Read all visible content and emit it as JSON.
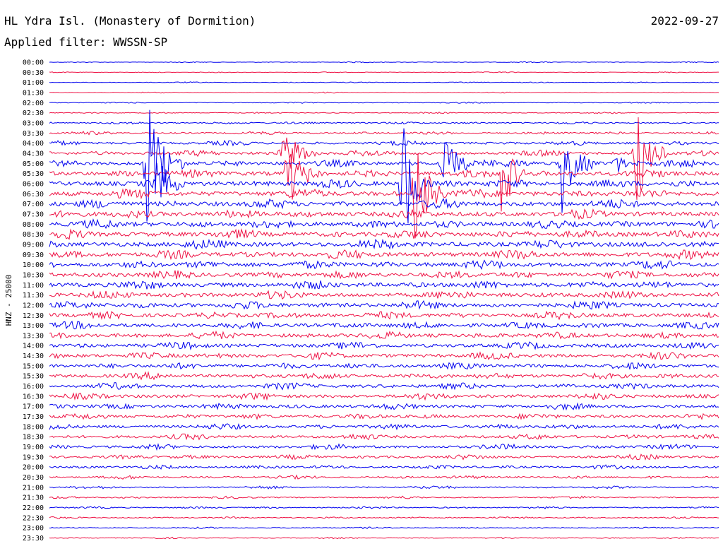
{
  "header": {
    "station": "HL Ydra Isl. (Monastery of Dormition)",
    "filter": "Applied filter: WWSSN-SP",
    "date": "2022-09-27"
  },
  "chart_data": {
    "type": "line",
    "subtype": "helicorder",
    "ylabel": "HNZ - 25000",
    "rows": [
      "00:00",
      "00:30",
      "01:00",
      "01:30",
      "02:00",
      "02:30",
      "03:00",
      "03:30",
      "04:00",
      "04:30",
      "05:00",
      "05:30",
      "06:00",
      "06:30",
      "07:00",
      "07:30",
      "08:00",
      "08:30",
      "09:00",
      "09:30",
      "10:00",
      "10:30",
      "11:00",
      "11:30",
      "12:00",
      "12:30",
      "13:00",
      "13:30",
      "14:00",
      "14:30",
      "15:00",
      "15:30",
      "16:00",
      "16:30",
      "17:00",
      "17:30",
      "18:00",
      "18:30",
      "19:00",
      "19:30",
      "20:00",
      "20:30",
      "21:00",
      "21:30",
      "22:00",
      "22:30",
      "23:00",
      "23:30"
    ],
    "colors": [
      "#0000ee",
      "#ee1144"
    ],
    "grid": false,
    "noise_envelope": [
      0.3,
      0.3,
      0.35,
      0.35,
      0.4,
      0.45,
      0.8,
      1.0,
      1.4,
      1.8,
      2.2,
      2.6,
      2.8,
      2.8,
      2.8,
      2.8,
      2.8,
      2.8,
      2.8,
      2.8,
      2.7,
      2.6,
      2.6,
      2.5,
      2.5,
      2.4,
      2.3,
      2.3,
      2.2,
      2.2,
      2.1,
      2.1,
      2.0,
      2.0,
      1.9,
      1.8,
      1.8,
      1.7,
      1.6,
      1.5,
      1.3,
      1.1,
      0.9,
      0.8,
      0.7,
      0.6,
      0.5,
      0.5
    ],
    "events": [
      {
        "row": 10,
        "x_fraction": 0.145,
        "amplitude": 100,
        "duration_fraction": 0.06
      },
      {
        "row": 12,
        "x_fraction": 0.16,
        "amplitude": 60,
        "duration_fraction": 0.04
      },
      {
        "row": 9,
        "x_fraction": 0.345,
        "amplitude": 55,
        "duration_fraction": 0.06
      },
      {
        "row": 11,
        "x_fraction": 0.355,
        "amplitude": 70,
        "duration_fraction": 0.05
      },
      {
        "row": 12,
        "x_fraction": 0.525,
        "amplitude": 110,
        "duration_fraction": 0.05
      },
      {
        "row": 13,
        "x_fraction": 0.545,
        "amplitude": 95,
        "duration_fraction": 0.05
      },
      {
        "row": 10,
        "x_fraction": 0.585,
        "amplitude": 40,
        "duration_fraction": 0.07
      },
      {
        "row": 11,
        "x_fraction": 0.675,
        "amplitude": 75,
        "duration_fraction": 0.04
      },
      {
        "row": 10,
        "x_fraction": 0.765,
        "amplitude": 85,
        "duration_fraction": 0.05
      },
      {
        "row": 9,
        "x_fraction": 0.875,
        "amplitude": 90,
        "duration_fraction": 0.05
      },
      {
        "row": 10,
        "x_fraction": 0.845,
        "amplitude": 20,
        "duration_fraction": 0.04
      }
    ]
  }
}
